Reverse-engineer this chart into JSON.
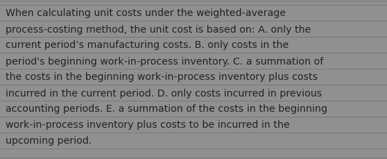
{
  "text_lines": [
    "When calculating unit costs under the weighted-average",
    "process-costing method, the unit cost is based on: A. only the",
    "current period’s manufacturing costs. B. only costs in the",
    "period's beginning work-in-process inventory. C. a summation of",
    "the costs in the beginning work-in-process inventory plus costs",
    "incurred in the current period. D. only costs incurred in previous",
    "accounting periods. E. a summation of the costs in the beginning",
    "work-in-process inventory plus costs to be incurred in the",
    "upcoming period."
  ],
  "background_color": "#909090",
  "text_color": "#222222",
  "font_size": 10.2,
  "line_color": "#7a7a7a",
  "fig_width": 5.58,
  "fig_height": 2.3,
  "dpi": 100
}
